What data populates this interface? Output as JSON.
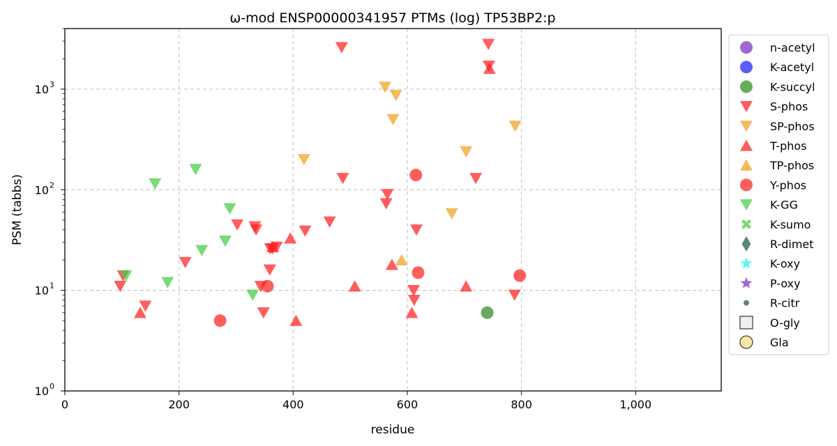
{
  "chart_data": {
    "type": "scatter",
    "title": "ω-mod ENSP00000341957 PTMs (log) TP53BP2:p",
    "xlabel": "residue",
    "ylabel": "PSM (tabbs)",
    "xlim": [
      0,
      1150
    ],
    "ylim": [
      1,
      4000
    ],
    "yscale": "log",
    "grid": true,
    "legend_position": "outside-right",
    "x_ticks": [
      0,
      200,
      400,
      600,
      800,
      1000
    ],
    "x_tick_labels": [
      "0",
      "200",
      "400",
      "600",
      "800",
      "1,000"
    ],
    "y_ticks": [
      1,
      10,
      100,
      1000
    ],
    "y_tick_bases": [
      "10",
      "10",
      "10",
      "10"
    ],
    "y_tick_exponents": [
      "0",
      "1",
      "2",
      "3"
    ],
    "series": [
      {
        "name": "n-acetyl",
        "marker": "circle",
        "color": "#7b2fbf",
        "points": []
      },
      {
        "name": "K-acetyl",
        "marker": "circle",
        "color": "#1f1fff",
        "points": []
      },
      {
        "name": "K-succyl",
        "marker": "circle",
        "color": "#2a8c1f",
        "points": [
          [
            740,
            6
          ]
        ]
      },
      {
        "name": "S-phos",
        "marker": "triangle-down",
        "color": "#ff2020",
        "points": [
          [
            97,
            11
          ],
          [
            102,
            14
          ],
          [
            141,
            7
          ],
          [
            211,
            19
          ],
          [
            302,
            45
          ],
          [
            333,
            43
          ],
          [
            335,
            40
          ],
          [
            343,
            11
          ],
          [
            348,
            6
          ],
          [
            359,
            16
          ],
          [
            360,
            26
          ],
          [
            364,
            26
          ],
          [
            371,
            27
          ],
          [
            421,
            39
          ],
          [
            464,
            48
          ],
          [
            485,
            2600
          ],
          [
            487,
            130
          ],
          [
            563,
            73
          ],
          [
            565,
            90
          ],
          [
            611,
            10
          ],
          [
            612,
            8
          ],
          [
            616,
            40
          ],
          [
            720,
            130
          ],
          [
            742,
            2800
          ],
          [
            743,
            1700
          ],
          [
            788,
            9
          ]
        ]
      },
      {
        "name": "SP-phos",
        "marker": "triangle-down",
        "color": "#f0a020",
        "points": [
          [
            419,
            200
          ],
          [
            561,
            1050
          ],
          [
            580,
            870
          ],
          [
            575,
            500
          ],
          [
            678,
            58
          ],
          [
            703,
            240
          ],
          [
            789,
            430
          ]
        ]
      },
      {
        "name": "T-phos",
        "marker": "triangle-up",
        "color": "#ff2020",
        "points": [
          [
            132,
            6
          ],
          [
            364,
            27
          ],
          [
            395,
            33
          ],
          [
            405,
            5
          ],
          [
            508,
            11
          ],
          [
            573,
            18
          ],
          [
            608,
            6
          ],
          [
            703,
            11
          ],
          [
            744,
            1600
          ]
        ]
      },
      {
        "name": "TP-phos",
        "marker": "triangle-up",
        "color": "#f0a020",
        "points": [
          [
            590,
            20
          ]
        ]
      },
      {
        "name": "Y-phos",
        "marker": "circle",
        "color": "#ff2020",
        "points": [
          [
            272,
            5
          ],
          [
            355,
            11
          ],
          [
            615,
            140
          ],
          [
            619,
            15
          ],
          [
            797,
            14
          ]
        ]
      },
      {
        "name": "K-GG",
        "marker": "triangle-down",
        "color": "#44cc44",
        "points": [
          [
            107,
            14
          ],
          [
            158,
            115
          ],
          [
            180,
            12
          ],
          [
            229,
            160
          ],
          [
            240,
            25
          ],
          [
            281,
            31
          ],
          [
            289,
            65
          ],
          [
            329,
            9
          ]
        ]
      },
      {
        "name": "K-sumo",
        "marker": "x",
        "color": "#44cc44",
        "points": []
      },
      {
        "name": "R-dimet",
        "marker": "diamond",
        "color": "#1a5c3a",
        "points": []
      },
      {
        "name": "K-oxy",
        "marker": "star",
        "color": "#22f2f2",
        "points": []
      },
      {
        "name": "P-oxy",
        "marker": "star",
        "color": "#7b2fbf",
        "points": []
      },
      {
        "name": "R-citr",
        "marker": "small-circle",
        "color": "#1a5c3a",
        "points": []
      },
      {
        "name": "O-gly",
        "marker": "square-open",
        "color": "#444444",
        "points": []
      },
      {
        "name": "Gla",
        "marker": "circle-open",
        "color": "#444444",
        "points": []
      }
    ]
  }
}
